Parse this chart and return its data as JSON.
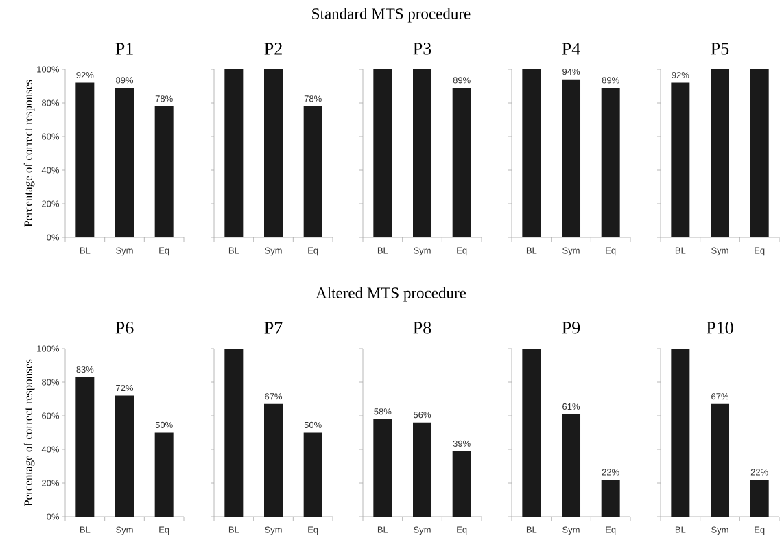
{
  "chart_data": [
    {
      "type": "bar",
      "title": "P1",
      "ylabel": "Percentage of correct responses",
      "categories": [
        "BL",
        "Sym",
        "Eq"
      ],
      "values": [
        92,
        89,
        78
      ],
      "value_labels": [
        "92%",
        "89%",
        "78%"
      ],
      "color": "#1a1a1a",
      "ylim": [
        0,
        100
      ],
      "yticks": [
        {
          "value": 0,
          "label": "0%"
        },
        {
          "value": 20,
          "label": "20%"
        },
        {
          "value": 40,
          "label": "40%"
        },
        {
          "value": 60,
          "label": "60%"
        },
        {
          "value": 80,
          "label": "80%"
        },
        {
          "value": 100,
          "label": "100%"
        }
      ]
    },
    {
      "type": "bar",
      "title": "P2",
      "categories": [
        "BL",
        "Sym",
        "Eq"
      ],
      "values": [
        100,
        100,
        78
      ],
      "value_labels": [
        null,
        null,
        "78%"
      ],
      "color": "#1a1a1a",
      "ylim": [
        0,
        100
      ],
      "yticks": [
        {
          "value": 0,
          "label": null
        },
        {
          "value": 20,
          "label": null
        },
        {
          "value": 40,
          "label": null
        },
        {
          "value": 60,
          "label": null
        },
        {
          "value": 80,
          "label": null
        },
        {
          "value": 100,
          "label": null
        }
      ],
      "tick_labels": "x"
    },
    {
      "type": "bar",
      "title": "P3",
      "annotations": [
        "Standard MTS procedure"
      ],
      "categories": [
        "BL",
        "Sym",
        "Eq"
      ],
      "values": [
        100,
        100,
        89
      ],
      "value_labels": [
        null,
        null,
        "89%"
      ],
      "color": "#1a1a1a",
      "ylim": [
        0,
        100
      ],
      "yticks": [
        {
          "value": 0,
          "label": null
        },
        {
          "value": 20,
          "label": null
        },
        {
          "value": 40,
          "label": null
        },
        {
          "value": 60,
          "label": null
        },
        {
          "value": 80,
          "label": null
        },
        {
          "value": 100,
          "label": null
        }
      ],
      "tick_labels": "x"
    },
    {
      "type": "bar",
      "title": "P4",
      "categories": [
        "BL",
        "Sym",
        "Eq"
      ],
      "values": [
        100,
        94,
        89
      ],
      "value_labels": [
        null,
        "94%",
        "89%"
      ],
      "color": "#1a1a1a",
      "ylim": [
        0,
        100
      ],
      "yticks": [
        {
          "value": 0,
          "label": null
        },
        {
          "value": 20,
          "label": null
        },
        {
          "value": 40,
          "label": null
        },
        {
          "value": 60,
          "label": null
        },
        {
          "value": 80,
          "label": null
        },
        {
          "value": 100,
          "label": null
        }
      ],
      "tick_labels": "x"
    },
    {
      "type": "bar",
      "title": "P5",
      "categories": [
        "BL",
        "Sym",
        "Eq"
      ],
      "values": [
        92,
        100,
        100
      ],
      "value_labels": [
        "92%",
        null,
        null
      ],
      "color": "#1a1a1a",
      "ylim": [
        0,
        100
      ],
      "yticks": [
        {
          "value": 0,
          "label": null
        },
        {
          "value": 20,
          "label": null
        },
        {
          "value": 40,
          "label": null
        },
        {
          "value": 60,
          "label": null
        },
        {
          "value": 80,
          "label": null
        },
        {
          "value": 100,
          "label": null
        }
      ],
      "tick_labels": "x"
    },
    {
      "type": "bar",
      "title": "P6",
      "ylabel": "Percentage of correct responses",
      "categories": [
        "BL",
        "Sym",
        "Eq"
      ],
      "values": [
        83,
        72,
        50
      ],
      "value_labels": [
        "83%",
        "72%",
        "50%"
      ],
      "color": "#1a1a1a",
      "ylim": [
        0,
        100
      ],
      "yticks": [
        {
          "value": 0,
          "label": "0%"
        },
        {
          "value": 20,
          "label": "20%"
        },
        {
          "value": 40,
          "label": "40%"
        },
        {
          "value": 60,
          "label": "60%"
        },
        {
          "value": 80,
          "label": "80%"
        },
        {
          "value": 100,
          "label": "100%"
        }
      ]
    },
    {
      "type": "bar",
      "title": "P7",
      "categories": [
        "BL",
        "Sym",
        "Eq"
      ],
      "values": [
        100,
        67,
        50
      ],
      "value_labels": [
        null,
        "67%",
        "50%"
      ],
      "color": "#1a1a1a",
      "ylim": [
        0,
        100
      ],
      "yticks": [
        {
          "value": 0,
          "label": null
        },
        {
          "value": 20,
          "label": null
        },
        {
          "value": 40,
          "label": null
        },
        {
          "value": 60,
          "label": null
        },
        {
          "value": 80,
          "label": null
        },
        {
          "value": 100,
          "label": null
        }
      ],
      "tick_labels": "x"
    },
    {
      "type": "bar",
      "title": "P8",
      "annotations": [
        "Altered MTS procedure"
      ],
      "categories": [
        "BL",
        "Sym",
        "Eq"
      ],
      "values": [
        58,
        56,
        39
      ],
      "value_labels": [
        "58%",
        "56%",
        "39%"
      ],
      "color": "#1a1a1a",
      "ylim": [
        0,
        100
      ],
      "yticks": [
        {
          "value": 0,
          "label": null
        },
        {
          "value": 20,
          "label": null
        },
        {
          "value": 40,
          "label": null
        },
        {
          "value": 60,
          "label": null
        },
        {
          "value": 80,
          "label": null
        },
        {
          "value": 100,
          "label": null
        }
      ],
      "tick_labels": "x"
    },
    {
      "type": "bar",
      "title": "P9",
      "categories": [
        "BL",
        "Sym",
        "Eq"
      ],
      "values": [
        100,
        61,
        22
      ],
      "value_labels": [
        null,
        "61%",
        "22%"
      ],
      "color": "#1a1a1a",
      "ylim": [
        0,
        100
      ],
      "yticks": [
        {
          "value": 0,
          "label": null
        },
        {
          "value": 20,
          "label": null
        },
        {
          "value": 40,
          "label": null
        },
        {
          "value": 60,
          "label": null
        },
        {
          "value": 80,
          "label": null
        },
        {
          "value": 100,
          "label": null
        }
      ],
      "tick_labels": "x"
    },
    {
      "type": "bar",
      "title": "P10",
      "categories": [
        "BL",
        "Sym",
        "Eq"
      ],
      "values": [
        100,
        67,
        22
      ],
      "value_labels": [
        null,
        "67%",
        "22%"
      ],
      "color": "#1a1a1a",
      "ylim": [
        0,
        100
      ],
      "yticks": [
        {
          "value": 0,
          "label": null
        },
        {
          "value": 20,
          "label": null
        },
        {
          "value": 40,
          "label": null
        },
        {
          "value": 60,
          "label": null
        },
        {
          "value": 80,
          "label": null
        },
        {
          "value": 100,
          "label": null
        }
      ],
      "tick_labels": "x"
    }
  ]
}
